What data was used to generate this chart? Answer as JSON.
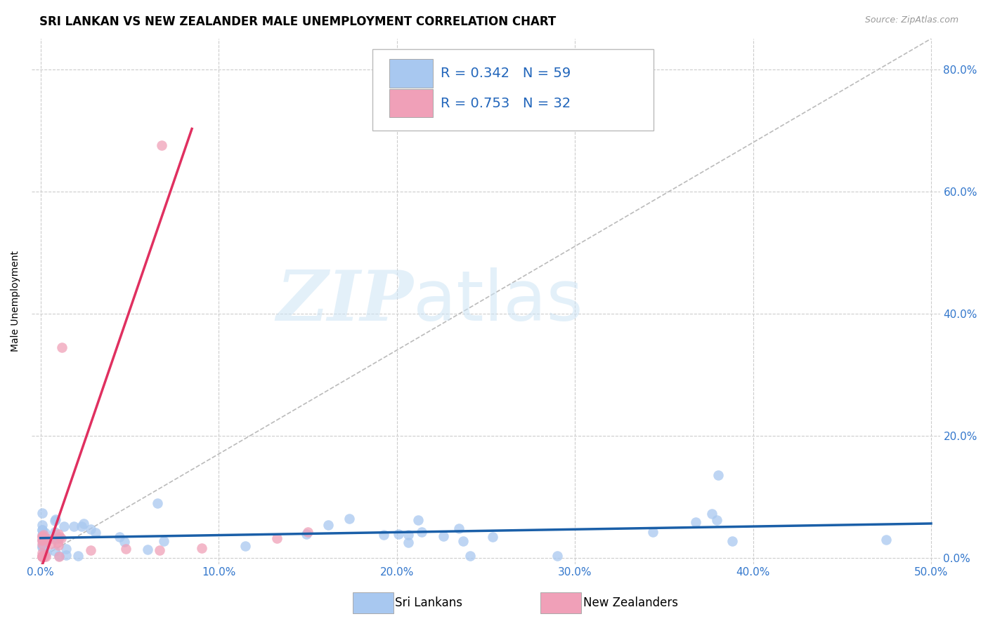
{
  "title": "SRI LANKAN VS NEW ZEALANDER MALE UNEMPLOYMENT CORRELATION CHART",
  "source": "Source: ZipAtlas.com",
  "xlabel_ticks": [
    "0.0%",
    "10.0%",
    "20.0%",
    "30.0%",
    "40.0%",
    "50.0%"
  ],
  "xlabel_vals": [
    0.0,
    0.1,
    0.2,
    0.3,
    0.4,
    0.5
  ],
  "ylabel": "Male Unemployment",
  "ylabel_right_ticks": [
    "80.0%",
    "60.0%",
    "40.0%",
    "20.0%",
    "0.0%"
  ],
  "ylabel_vals": [
    0.0,
    0.2,
    0.4,
    0.6,
    0.8
  ],
  "xlim": [
    -0.005,
    0.505
  ],
  "ylim": [
    -0.01,
    0.85
  ],
  "sri_lankans_color": "#a8c8f0",
  "new_zealanders_color": "#f0a0b8",
  "sri_lankans_line_color": "#1a5fa8",
  "new_zealanders_line_color": "#e03060",
  "R_sri": "0.342",
  "N_sri": "59",
  "R_nz": "0.753",
  "N_nz": "32",
  "title_fontsize": 12,
  "label_fontsize": 10,
  "tick_fontsize": 11,
  "watermark_zip": "ZIP",
  "watermark_atlas": "atlas",
  "background_color": "#ffffff",
  "grid_color": "#cccccc"
}
